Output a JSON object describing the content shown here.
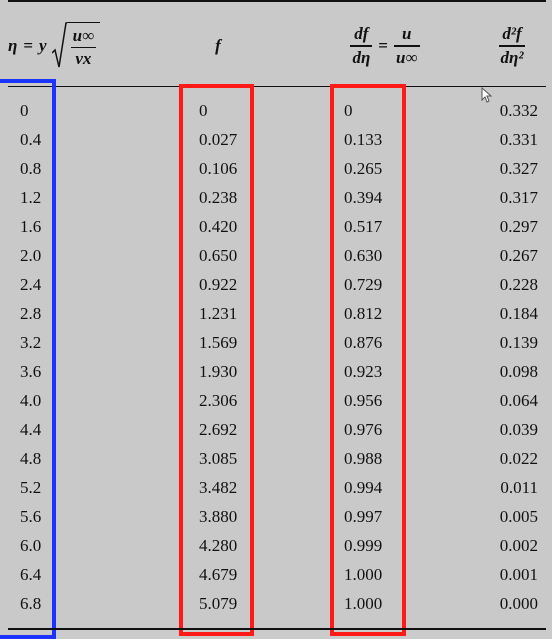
{
  "table": {
    "headers": {
      "eta": {
        "eta_symbol": "η",
        "equals": "=",
        "y": "y",
        "sqrt_num": "u∞",
        "sqrt_den": "νx"
      },
      "f": {
        "label": "f"
      },
      "dfdeta": {
        "num": "df",
        "den": "dη",
        "equals": "=",
        "num2": "u",
        "den2": "u∞"
      },
      "d2f": {
        "num": "d²f",
        "den": "dη²"
      }
    },
    "rows": [
      {
        "eta": "0",
        "f": "0",
        "dfdeta": "0",
        "d2f": "0.332"
      },
      {
        "eta": "0.4",
        "f": "0.027",
        "dfdeta": "0.133",
        "d2f": "0.331"
      },
      {
        "eta": "0.8",
        "f": "0.106",
        "dfdeta": "0.265",
        "d2f": "0.327"
      },
      {
        "eta": "1.2",
        "f": "0.238",
        "dfdeta": "0.394",
        "d2f": "0.317"
      },
      {
        "eta": "1.6",
        "f": "0.420",
        "dfdeta": "0.517",
        "d2f": "0.297"
      },
      {
        "eta": "2.0",
        "f": "0.650",
        "dfdeta": "0.630",
        "d2f": "0.267"
      },
      {
        "eta": "2.4",
        "f": "0.922",
        "dfdeta": "0.729",
        "d2f": "0.228"
      },
      {
        "eta": "2.8",
        "f": "1.231",
        "dfdeta": "0.812",
        "d2f": "0.184"
      },
      {
        "eta": "3.2",
        "f": "1.569",
        "dfdeta": "0.876",
        "d2f": "0.139"
      },
      {
        "eta": "3.6",
        "f": "1.930",
        "dfdeta": "0.923",
        "d2f": "0.098"
      },
      {
        "eta": "4.0",
        "f": "2.306",
        "dfdeta": "0.956",
        "d2f": "0.064"
      },
      {
        "eta": "4.4",
        "f": "2.692",
        "dfdeta": "0.976",
        "d2f": "0.039"
      },
      {
        "eta": "4.8",
        "f": "3.085",
        "dfdeta": "0.988",
        "d2f": "0.022"
      },
      {
        "eta": "5.2",
        "f": "3.482",
        "dfdeta": "0.994",
        "d2f": "0.011"
      },
      {
        "eta": "5.6",
        "f": "3.880",
        "dfdeta": "0.997",
        "d2f": "0.005"
      },
      {
        "eta": "6.0",
        "f": "4.280",
        "dfdeta": "0.999",
        "d2f": "0.002"
      },
      {
        "eta": "6.4",
        "f": "4.679",
        "dfdeta": "1.000",
        "d2f": "0.001"
      },
      {
        "eta": "6.8",
        "f": "5.079",
        "dfdeta": "1.000",
        "d2f": "0.000"
      }
    ]
  },
  "highlights": {
    "eta_column_color": "#1d33ff",
    "f_column_color": "#ff1a1a",
    "dfdeta_column_color": "#ff1a1a"
  },
  "icons": {
    "cursor": "mouse-pointer-icon"
  }
}
